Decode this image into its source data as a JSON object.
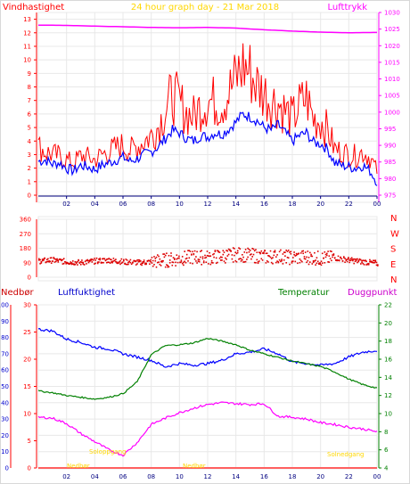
{
  "header": {
    "left_label": "Vindhastighet",
    "title": "24 hour graph day - 21 Mar 2018",
    "right_label": "Lufttrykk"
  },
  "colors": {
    "frame": "#e8e8e8",
    "grid": "#e8e8e8",
    "wind_axis": "#ff0000",
    "pressure_axis": "#ff00ff",
    "time_axis": "#000080",
    "title": "#ffd700",
    "wind_gust": "#ff0000",
    "wind_avg": "#0000ff",
    "pressure": "#ff00ff",
    "direction": "#dd0000",
    "rain": "#ff0000",
    "humidity": "#0000ff",
    "temperature": "#008000",
    "dewpoint": "#ff00ff",
    "sun": "#ffd700",
    "humidity_label": "#0000cc"
  },
  "chart_data": [
    {
      "type": "line",
      "name": "wind-pressure",
      "x_tick_labels": [
        "02",
        "04",
        "06",
        "08",
        "10",
        "12",
        "14",
        "16",
        "18",
        "20",
        "22",
        "00"
      ],
      "y_left_ticks": [
        "0",
        "1",
        "2",
        "3",
        "4",
        "5",
        "6",
        "7",
        "8",
        "9",
        "10",
        "11",
        "12",
        "13"
      ],
      "y_right_ticks": [
        "975",
        "980",
        "985",
        "990",
        "995",
        "1000",
        "1005",
        "1010",
        "1015",
        "1020",
        "1025",
        "1030"
      ],
      "ylim_left": [
        0,
        13.5
      ],
      "ylim_right": [
        975,
        1030
      ],
      "series": [
        {
          "name": "Vindhastighet",
          "hours": [
            0,
            0.5,
            1,
            1.5,
            2,
            2.5,
            3,
            3.5,
            4,
            4.5,
            5,
            5.5,
            6,
            6.5,
            7,
            7.5,
            8,
            8.5,
            9,
            9.5,
            10,
            10.5,
            11,
            11.5,
            12,
            12.5,
            13,
            13.5,
            14,
            14.5,
            15,
            15.5,
            16,
            16.5,
            17,
            17.5,
            18,
            18.5,
            19,
            19.5,
            20,
            20.5,
            21,
            21.5,
            22,
            22.5,
            23,
            23.5,
            24
          ],
          "avg": [
            2.5,
            2.6,
            2.3,
            2.4,
            2.0,
            1.8,
            2.2,
            2.1,
            1.9,
            2.2,
            2.4,
            2.6,
            2.8,
            2.5,
            2.7,
            3.0,
            3.2,
            3.6,
            4.2,
            4.8,
            4.6,
            4.2,
            4.0,
            4.4,
            4.3,
            4.6,
            4.5,
            4.9,
            5.4,
            6.0,
            5.8,
            5.5,
            5.0,
            4.8,
            5.2,
            4.6,
            4.0,
            4.4,
            4.6,
            3.9,
            3.8,
            3.4,
            2.4,
            2.2,
            2.1,
            2.0,
            2.2,
            1.8,
            1.0
          ],
          "gust": [
            3.6,
            3.2,
            3.0,
            2.9,
            2.6,
            2.4,
            2.9,
            2.8,
            2.6,
            3.0,
            3.2,
            3.5,
            3.7,
            3.3,
            3.6,
            4.0,
            4.4,
            5.1,
            6.3,
            7.4,
            6.8,
            6.1,
            5.8,
            6.6,
            7.0,
            6.9,
            6.8,
            7.6,
            8.6,
            9.6,
            9.1,
            8.1,
            7.6,
            7.0,
            6.8,
            6.2,
            5.6,
            6.6,
            7.2,
            5.6,
            5.5,
            4.8,
            3.4,
            3.2,
            3.0,
            2.9,
            3.2,
            2.8,
            1.8
          ]
        },
        {
          "name": "Lufttrykk",
          "hours": [
            0,
            2,
            4,
            6,
            8,
            10,
            12,
            14,
            16,
            18,
            20,
            22,
            24
          ],
          "values": [
            1026.2,
            1026.1,
            1025.9,
            1025.7,
            1025.5,
            1025.4,
            1025.5,
            1025.3,
            1024.8,
            1024.4,
            1024.1,
            1023.9,
            1024.0
          ]
        }
      ]
    },
    {
      "type": "scatter",
      "name": "wind-direction",
      "y_ticks": [
        "360",
        "270",
        "180",
        "90",
        "0"
      ],
      "compass_labels": [
        "N",
        "W",
        "S",
        "E",
        "N"
      ],
      "ylim": [
        0,
        360
      ],
      "hours": [
        0,
        1,
        2,
        3,
        4,
        5,
        6,
        7,
        8,
        9,
        10,
        11,
        12,
        13,
        14,
        15,
        16,
        17,
        18,
        19,
        20,
        21,
        22,
        23,
        24
      ],
      "degrees": [
        105,
        110,
        100,
        95,
        105,
        110,
        100,
        95,
        100,
        110,
        120,
        130,
        125,
        135,
        145,
        140,
        130,
        135,
        125,
        130,
        120,
        125,
        110,
        100,
        90
      ]
    },
    {
      "type": "line",
      "name": "rain-humidity-temperature",
      "left_labels": {
        "rain": "Nedbør",
        "humidity": "Luftfuktighet"
      },
      "right_labels": {
        "temperature": "Temperatur",
        "dewpoint": "Duggpunkt"
      },
      "sunrise_label": "Soloppgang",
      "sunset_label": "Solnedgang",
      "bottom_labels": [
        "Nedbør",
        "Nedbør"
      ],
      "y_rain_ticks": [
        "0",
        "10",
        "20",
        "30",
        "40",
        "50",
        "60",
        "70",
        "80",
        "90",
        "100"
      ],
      "y_humidity_ticks": [
        "0",
        "5",
        "10",
        "15",
        "20",
        "25",
        "30"
      ],
      "y_temp_ticks": [
        "4",
        "6",
        "8",
        "10",
        "12",
        "14",
        "16",
        "18",
        "20",
        "22"
      ],
      "ylim_rain": [
        0,
        100
      ],
      "ylim_humidity": [
        0,
        30
      ],
      "ylim_temp": [
        4,
        22
      ],
      "hours": [
        0,
        1,
        2,
        3,
        4,
        5,
        6,
        7,
        8,
        9,
        10,
        11,
        12,
        13,
        14,
        15,
        16,
        17,
        18,
        19,
        20,
        21,
        22,
        23,
        24
      ],
      "humidity": [
        85,
        84,
        79,
        77,
        74,
        73,
        70,
        68,
        66,
        62,
        64,
        63,
        64,
        66,
        70,
        71,
        73,
        70,
        65,
        64,
        63,
        64,
        68,
        71,
        72
      ],
      "temperature": [
        12.5,
        12.3,
        12.0,
        11.8,
        11.6,
        11.8,
        12.2,
        13.5,
        16.5,
        17.5,
        17.6,
        17.8,
        18.3,
        18.0,
        17.6,
        17.0,
        16.6,
        16.2,
        15.8,
        15.5,
        15.2,
        14.6,
        13.8,
        13.2,
        12.8
      ],
      "dewpoint": [
        9.6,
        9.5,
        8.9,
        7.8,
        6.9,
        6.0,
        5.4,
        6.8,
        8.8,
        9.5,
        10.1,
        10.6,
        11.0,
        11.2,
        11.1,
        11.0,
        11.1,
        9.7,
        9.6,
        9.4,
        9.0,
        8.8,
        8.5,
        8.3,
        8.0
      ]
    }
  ]
}
